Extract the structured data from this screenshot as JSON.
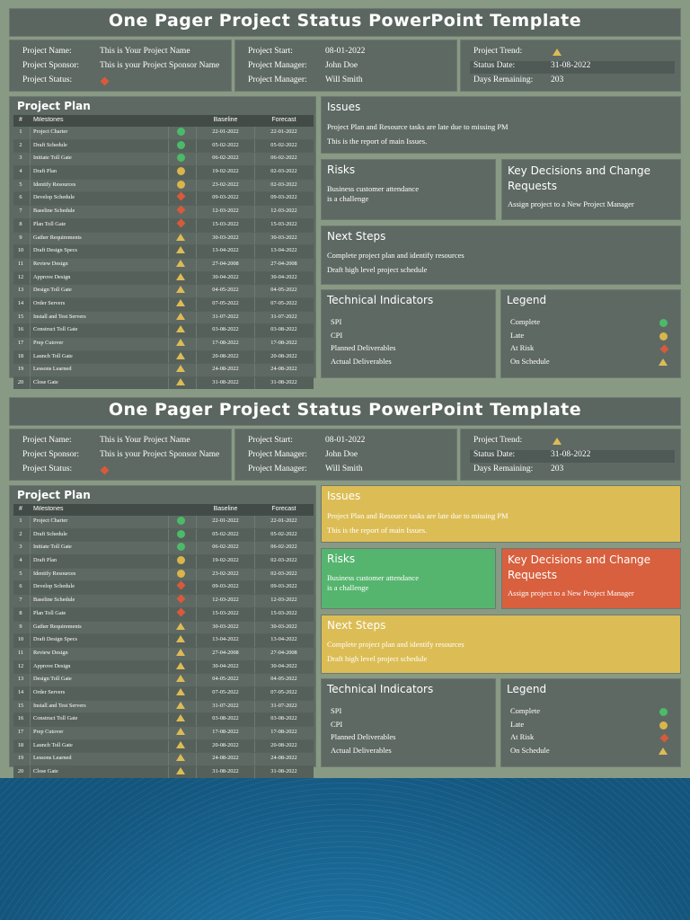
{
  "title": "One Pager Project Status PowerPoint Template",
  "info": {
    "col1": [
      {
        "k": "Project Name:",
        "v": "This is Your Project Name"
      },
      {
        "k": "Project Sponsor:",
        "v": "This is your Project Sponsor Name"
      },
      {
        "k": "Project Status:",
        "v": ""
      }
    ],
    "col2": [
      {
        "k": "Project Start:",
        "v": "08-01-2022"
      },
      {
        "k": "Project Manager:",
        "v": "John Doe"
      },
      {
        "k": "Project Manager:",
        "v": "Will Smith"
      }
    ],
    "col3": [
      {
        "k": "Project Trend:",
        "v": ""
      },
      {
        "k": "Status Date:",
        "v": "31-08-2022"
      },
      {
        "k": "Days Remaining:",
        "v": "203"
      }
    ]
  },
  "plan": {
    "heading": "Project Plan",
    "headers": {
      "num": "#",
      "milestones": "Milestones",
      "baseline": "Baseline",
      "forecast": "Forecast"
    },
    "rows": [
      {
        "n": "1",
        "m": "Project Charter",
        "s": "complete",
        "b": "22-01-2022",
        "f": "22-01-2022"
      },
      {
        "n": "2",
        "m": "Draft Schedule",
        "s": "complete",
        "b": "05-02-2022",
        "f": "05-02-2022"
      },
      {
        "n": "3",
        "m": "Initiate Toll Gate",
        "s": "complete",
        "b": "06-02-2022",
        "f": "06-02-2022"
      },
      {
        "n": "4",
        "m": "Draft Plan",
        "s": "late",
        "b": "19-02-2022",
        "f": "02-03-2022"
      },
      {
        "n": "5",
        "m": "Identify Resources",
        "s": "late",
        "b": "23-02-2022",
        "f": "02-03-2022"
      },
      {
        "n": "6",
        "m": "Develop Schedule",
        "s": "risk",
        "b": "09-03-2022",
        "f": "09-03-2022"
      },
      {
        "n": "7",
        "m": "Baseline Schedule",
        "s": "risk",
        "b": "12-03-2022",
        "f": "12-03-2022"
      },
      {
        "n": "8",
        "m": "Plan Toll Gate",
        "s": "risk",
        "b": "15-03-2022",
        "f": "15-03-2022"
      },
      {
        "n": "9",
        "m": "Gather Requirements",
        "s": "schedule",
        "b": "30-03-2022",
        "f": "30-03-2022"
      },
      {
        "n": "10",
        "m": "Draft Design Specs",
        "s": "schedule",
        "b": "13-04-2022",
        "f": "13-04-2022"
      },
      {
        "n": "11",
        "m": "Review Design",
        "s": "schedule",
        "b": "27-04-2008",
        "f": "27-04-2008"
      },
      {
        "n": "12",
        "m": "Approve Design",
        "s": "schedule",
        "b": "30-04-2022",
        "f": "30-04-2022"
      },
      {
        "n": "13",
        "m": "Design Toll Gate",
        "s": "schedule",
        "b": "04-05-2022",
        "f": "04-05-2022"
      },
      {
        "n": "14",
        "m": "Order Servers",
        "s": "schedule",
        "b": "07-05-2022",
        "f": "07-05-2022"
      },
      {
        "n": "15",
        "m": "Install and Test Servers",
        "s": "schedule",
        "b": "31-07-2022",
        "f": "31-07-2022"
      },
      {
        "n": "16",
        "m": "Construct Toll Gate",
        "s": "schedule",
        "b": "03-08-2022",
        "f": "03-08-2022"
      },
      {
        "n": "17",
        "m": "Prep Cutover",
        "s": "schedule",
        "b": "17-08-2022",
        "f": "17-08-2022"
      },
      {
        "n": "18",
        "m": "Launch Toll Gate",
        "s": "schedule",
        "b": "20-08-2022",
        "f": "20-08-2022"
      },
      {
        "n": "19",
        "m": "Lessons Learned",
        "s": "schedule",
        "b": "24-08-2022",
        "f": "24-08-2022"
      },
      {
        "n": "20",
        "m": "Close Gate",
        "s": "schedule",
        "b": "31-08-2022",
        "f": "31-08-2022"
      }
    ]
  },
  "issues": {
    "heading": "Issues",
    "lines": [
      "Project Plan and Resource tasks are late due to missing PM",
      "This is the report of main Issues."
    ]
  },
  "risks": {
    "heading": "Risks",
    "lines": [
      "Business customer attendance",
      "is a challenge"
    ]
  },
  "decisions": {
    "heading": "Key Decisions and Change Requests",
    "lines": [
      "Assign project to a New Project Manager"
    ]
  },
  "next_steps": {
    "heading": "Next Steps",
    "lines": [
      "Complete project plan and identify resources",
      "Draft high level project schedule"
    ]
  },
  "technical": {
    "heading": "Technical Indicators",
    "items": [
      "SPI",
      "CPI",
      "Planned Deliverables",
      "Actual Deliverables"
    ]
  },
  "legend": {
    "heading": "Legend",
    "items": [
      {
        "label": "Complete",
        "kind": "complete"
      },
      {
        "label": "Late",
        "kind": "late"
      },
      {
        "label": "At Risk",
        "kind": "risk"
      },
      {
        "label": "On Schedule",
        "kind": "schedule"
      }
    ]
  },
  "colors": {
    "complete": "#4cba68",
    "late": "#d9b54a",
    "risk": "#d85a3a",
    "schedule": "#ddbb55",
    "issues_bg": "#dcbd55",
    "risks_bg": "#55b56e",
    "decisions_bg": "#d8603e",
    "next_bg": "#dcbd55",
    "panel": "#5e6964"
  }
}
